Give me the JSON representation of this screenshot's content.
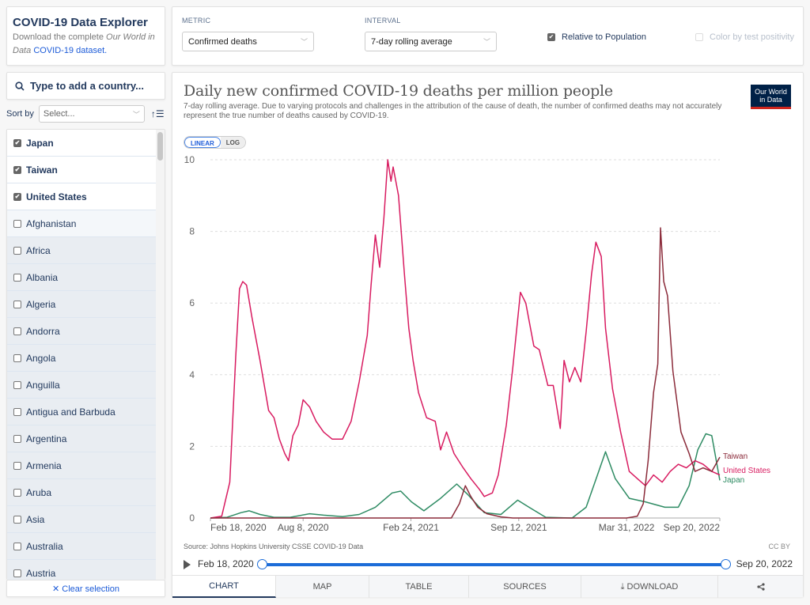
{
  "intro": {
    "title": "COVID-19 Data Explorer",
    "desc_prefix": "Download the complete ",
    "desc_em1": "Our World in",
    "desc_em2": "Data",
    "desc_link": "COVID-19 dataset."
  },
  "search": {
    "placeholder": "Type to add a country..."
  },
  "sort": {
    "label": "Sort by",
    "value": "Select..."
  },
  "countries": [
    {
      "name": "Japan",
      "selected": true
    },
    {
      "name": "Taiwan",
      "selected": true
    },
    {
      "name": "United States",
      "selected": true
    },
    {
      "name": "Afghanistan",
      "selected": false
    },
    {
      "name": "Africa",
      "selected": false
    },
    {
      "name": "Albania",
      "selected": false
    },
    {
      "name": "Algeria",
      "selected": false
    },
    {
      "name": "Andorra",
      "selected": false
    },
    {
      "name": "Angola",
      "selected": false
    },
    {
      "name": "Anguilla",
      "selected": false
    },
    {
      "name": "Antigua and Barbuda",
      "selected": false
    },
    {
      "name": "Argentina",
      "selected": false
    },
    {
      "name": "Armenia",
      "selected": false
    },
    {
      "name": "Aruba",
      "selected": false
    },
    {
      "name": "Asia",
      "selected": false
    },
    {
      "name": "Australia",
      "selected": false
    },
    {
      "name": "Austria",
      "selected": false
    }
  ],
  "clear_selection": "✕ Clear selection",
  "controls": {
    "metric_label": "METRIC",
    "metric_value": "Confirmed deaths",
    "interval_label": "INTERVAL",
    "interval_value": "7-day rolling average",
    "relative_label": "Relative to Population",
    "relative_checked": true,
    "color_label": "Color by test positivity",
    "color_checked": false
  },
  "logo": {
    "line1": "Our World",
    "line2": "in Data"
  },
  "scale": {
    "linear": "LINEAR",
    "log": "LOG",
    "active": "LINEAR"
  },
  "footer": {
    "source": "Source: Johns Hopkins University CSSE COVID-19 Data",
    "license": "CC BY"
  },
  "timeline": {
    "start": "Feb 18, 2020",
    "end": "Sep 20, 2022",
    "start_fraction": 0,
    "end_fraction": 1
  },
  "tabs": [
    {
      "label": "CHART",
      "active": true
    },
    {
      "label": "MAP",
      "active": false
    },
    {
      "label": "TABLE",
      "active": false
    },
    {
      "label": "SOURCES",
      "active": false
    },
    {
      "label": "⤓ DOWNLOAD",
      "active": false
    },
    {
      "label": "share",
      "active": false
    }
  ],
  "colors": {
    "united_states": "#d81b60",
    "taiwan": "#8b2b3a",
    "japan": "#2e8b63",
    "accent": "#1c6cd8"
  },
  "chart_data": {
    "type": "line",
    "title": "Daily new confirmed COVID-19 deaths per million people",
    "subtitle": "7-day rolling average. Due to varying protocols and challenges in the attribution of the cause of death, the number of confirmed deaths may not accurately represent the true number of deaths caused by COVID-19.",
    "xlabel": "",
    "ylabel": "",
    "x_domain": [
      "2020-02-18",
      "2022-09-20"
    ],
    "x_ticks": [
      "Feb 18, 2020",
      "Aug 8, 2020",
      "Feb 24, 2021",
      "Sep 12, 2021",
      "Mar 31, 2022",
      "Sep 20, 2022"
    ],
    "x_tick_dates": [
      "2020-02-18",
      "2020-08-08",
      "2021-02-24",
      "2021-09-12",
      "2022-03-31",
      "2022-09-20"
    ],
    "y_ticks": [
      0,
      2,
      4,
      6,
      8,
      10
    ],
    "ylim": [
      0,
      10
    ],
    "grid": true,
    "legend": "right-end labels",
    "series": [
      {
        "name": "United States",
        "color": "#d81b60",
        "points": [
          [
            "2020-02-18",
            0
          ],
          [
            "2020-03-10",
            0.05
          ],
          [
            "2020-03-25",
            1.0
          ],
          [
            "2020-04-05",
            4.5
          ],
          [
            "2020-04-12",
            6.4
          ],
          [
            "2020-04-18",
            6.6
          ],
          [
            "2020-04-25",
            6.5
          ],
          [
            "2020-05-05",
            5.6
          ],
          [
            "2020-05-20",
            4.4
          ],
          [
            "2020-06-05",
            3.0
          ],
          [
            "2020-06-15",
            2.8
          ],
          [
            "2020-06-25",
            2.2
          ],
          [
            "2020-07-05",
            1.8
          ],
          [
            "2020-07-12",
            1.6
          ],
          [
            "2020-07-20",
            2.3
          ],
          [
            "2020-07-30",
            2.6
          ],
          [
            "2020-08-08",
            3.3
          ],
          [
            "2020-08-20",
            3.1
          ],
          [
            "2020-09-01",
            2.7
          ],
          [
            "2020-09-15",
            2.4
          ],
          [
            "2020-10-01",
            2.2
          ],
          [
            "2020-10-20",
            2.2
          ],
          [
            "2020-11-05",
            2.7
          ],
          [
            "2020-11-20",
            3.8
          ],
          [
            "2020-12-05",
            5.1
          ],
          [
            "2020-12-12",
            6.5
          ],
          [
            "2020-12-20",
            7.9
          ],
          [
            "2020-12-28",
            7.0
          ],
          [
            "2021-01-05",
            8.4
          ],
          [
            "2021-01-12",
            10.0
          ],
          [
            "2021-01-18",
            9.4
          ],
          [
            "2021-01-22",
            9.8
          ],
          [
            "2021-02-01",
            9.0
          ],
          [
            "2021-02-12",
            6.8
          ],
          [
            "2021-02-20",
            5.3
          ],
          [
            "2021-02-28",
            4.4
          ],
          [
            "2021-03-10",
            3.5
          ],
          [
            "2021-03-25",
            2.8
          ],
          [
            "2021-04-10",
            2.7
          ],
          [
            "2021-04-20",
            1.9
          ],
          [
            "2021-05-01",
            2.4
          ],
          [
            "2021-05-15",
            1.8
          ],
          [
            "2021-06-01",
            1.4
          ],
          [
            "2021-06-15",
            1.1
          ],
          [
            "2021-07-01",
            0.8
          ],
          [
            "2021-07-10",
            0.6
          ],
          [
            "2021-07-25",
            0.7
          ],
          [
            "2021-08-05",
            1.2
          ],
          [
            "2021-08-20",
            2.6
          ],
          [
            "2021-09-01",
            4.2
          ],
          [
            "2021-09-15",
            6.3
          ],
          [
            "2021-09-25",
            6.0
          ],
          [
            "2021-10-10",
            4.8
          ],
          [
            "2021-10-20",
            4.7
          ],
          [
            "2021-11-05",
            3.7
          ],
          [
            "2021-11-15",
            3.7
          ],
          [
            "2021-11-28",
            2.5
          ],
          [
            "2021-12-05",
            4.4
          ],
          [
            "2021-12-15",
            3.8
          ],
          [
            "2021-12-25",
            4.2
          ],
          [
            "2022-01-05",
            3.8
          ],
          [
            "2022-01-15",
            5.2
          ],
          [
            "2022-01-25",
            6.8
          ],
          [
            "2022-02-02",
            7.7
          ],
          [
            "2022-02-12",
            7.3
          ],
          [
            "2022-02-20",
            5.3
          ],
          [
            "2022-03-05",
            3.6
          ],
          [
            "2022-03-20",
            2.4
          ],
          [
            "2022-04-05",
            1.3
          ],
          [
            "2022-04-20",
            1.1
          ],
          [
            "2022-05-05",
            0.9
          ],
          [
            "2022-05-20",
            1.2
          ],
          [
            "2022-06-05",
            1.0
          ],
          [
            "2022-06-20",
            1.3
          ],
          [
            "2022-07-05",
            1.5
          ],
          [
            "2022-07-20",
            1.4
          ],
          [
            "2022-08-05",
            1.6
          ],
          [
            "2022-08-20",
            1.5
          ],
          [
            "2022-09-05",
            1.3
          ],
          [
            "2022-09-20",
            1.2
          ]
        ]
      },
      {
        "name": "Taiwan",
        "color": "#8b2b3a",
        "points": [
          [
            "2020-02-18",
            0
          ],
          [
            "2021-05-10",
            0
          ],
          [
            "2021-05-25",
            0.4
          ],
          [
            "2021-06-05",
            0.9
          ],
          [
            "2021-06-15",
            0.6
          ],
          [
            "2021-06-28",
            0.3
          ],
          [
            "2021-07-15",
            0.12
          ],
          [
            "2021-08-10",
            0.03
          ],
          [
            "2021-09-01",
            0
          ],
          [
            "2022-03-31",
            0
          ],
          [
            "2022-04-20",
            0.05
          ],
          [
            "2022-05-01",
            0.4
          ],
          [
            "2022-05-10",
            1.6
          ],
          [
            "2022-05-20",
            3.5
          ],
          [
            "2022-05-28",
            4.3
          ],
          [
            "2022-06-02",
            8.1
          ],
          [
            "2022-06-08",
            6.6
          ],
          [
            "2022-06-15",
            6.2
          ],
          [
            "2022-06-25",
            4.1
          ],
          [
            "2022-07-10",
            2.4
          ],
          [
            "2022-07-25",
            1.8
          ],
          [
            "2022-08-05",
            1.3
          ],
          [
            "2022-08-20",
            1.4
          ],
          [
            "2022-09-05",
            1.3
          ],
          [
            "2022-09-20",
            1.7
          ]
        ]
      },
      {
        "name": "Japan",
        "color": "#2e8b63",
        "points": [
          [
            "2020-02-18",
            0
          ],
          [
            "2020-03-20",
            0.02
          ],
          [
            "2020-04-15",
            0.15
          ],
          [
            "2020-04-30",
            0.2
          ],
          [
            "2020-05-20",
            0.1
          ],
          [
            "2020-06-15",
            0.02
          ],
          [
            "2020-07-15",
            0.02
          ],
          [
            "2020-08-20",
            0.12
          ],
          [
            "2020-09-15",
            0.08
          ],
          [
            "2020-10-20",
            0.04
          ],
          [
            "2020-11-20",
            0.1
          ],
          [
            "2020-12-20",
            0.3
          ],
          [
            "2021-01-20",
            0.7
          ],
          [
            "2021-02-05",
            0.75
          ],
          [
            "2021-02-25",
            0.45
          ],
          [
            "2021-03-20",
            0.2
          ],
          [
            "2021-04-20",
            0.55
          ],
          [
            "2021-05-20",
            0.95
          ],
          [
            "2021-06-10",
            0.65
          ],
          [
            "2021-07-10",
            0.15
          ],
          [
            "2021-08-10",
            0.1
          ],
          [
            "2021-09-10",
            0.5
          ],
          [
            "2021-10-01",
            0.3
          ],
          [
            "2021-11-01",
            0.02
          ],
          [
            "2021-12-20",
            0.0
          ],
          [
            "2022-01-15",
            0.3
          ],
          [
            "2022-02-05",
            1.2
          ],
          [
            "2022-02-20",
            1.85
          ],
          [
            "2022-03-10",
            1.1
          ],
          [
            "2022-04-05",
            0.55
          ],
          [
            "2022-05-05",
            0.45
          ],
          [
            "2022-06-10",
            0.3
          ],
          [
            "2022-07-05",
            0.3
          ],
          [
            "2022-07-25",
            0.9
          ],
          [
            "2022-08-10",
            1.9
          ],
          [
            "2022-08-25",
            2.35
          ],
          [
            "2022-09-05",
            2.3
          ],
          [
            "2022-09-20",
            1.05
          ]
        ]
      }
    ]
  }
}
